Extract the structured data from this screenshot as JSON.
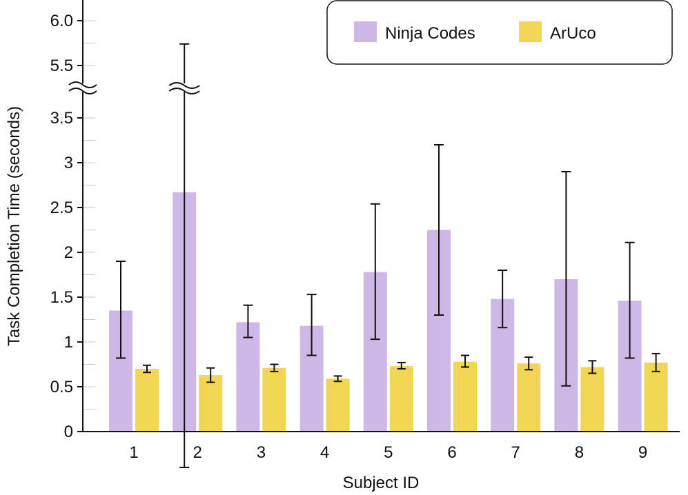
{
  "chart_data": {
    "type": "bar",
    "title": "",
    "xlabel": "Subject ID",
    "ylabel": "Task Completion Time (seconds)",
    "ylim": [
      0,
      6.0
    ],
    "axis_break": {
      "from": 3.7,
      "to": 5.3
    },
    "y_ticks": [
      {
        "value": 0,
        "label": "0"
      },
      {
        "value": 0.5,
        "label": "0.5"
      },
      {
        "value": 1,
        "label": "1"
      },
      {
        "value": 1.5,
        "label": "1.5"
      },
      {
        "value": 2,
        "label": "2"
      },
      {
        "value": 2.5,
        "label": "2.5"
      },
      {
        "value": 3,
        "label": "3"
      },
      {
        "value": 3.5,
        "label": "3.5"
      },
      {
        "value": 5.5,
        "label": "5.5"
      },
      {
        "value": 6.0,
        "label": "6.0"
      }
    ],
    "categories": [
      "1",
      "2",
      "3",
      "4",
      "5",
      "6",
      "7",
      "8",
      "9"
    ],
    "legend_position": "top-right",
    "series": [
      {
        "name": "Ninja Codes",
        "color": "#cdb7e6",
        "values": [
          1.35,
          2.67,
          1.22,
          1.18,
          1.78,
          2.25,
          1.48,
          1.7,
          1.46
        ],
        "err_low": [
          0.82,
          -0.4,
          1.05,
          0.85,
          1.03,
          1.3,
          1.16,
          0.51,
          0.82
        ],
        "err_high": [
          1.9,
          5.74,
          1.41,
          1.53,
          2.54,
          3.2,
          1.8,
          2.9,
          2.11
        ]
      },
      {
        "name": "ArUco",
        "color": "#f2d552",
        "values": [
          0.7,
          0.63,
          0.71,
          0.59,
          0.73,
          0.78,
          0.76,
          0.72,
          0.77
        ],
        "err_low": [
          0.66,
          0.55,
          0.67,
          0.56,
          0.7,
          0.72,
          0.69,
          0.65,
          0.67
        ],
        "err_high": [
          0.74,
          0.71,
          0.75,
          0.62,
          0.77,
          0.85,
          0.83,
          0.79,
          0.87
        ]
      }
    ]
  }
}
